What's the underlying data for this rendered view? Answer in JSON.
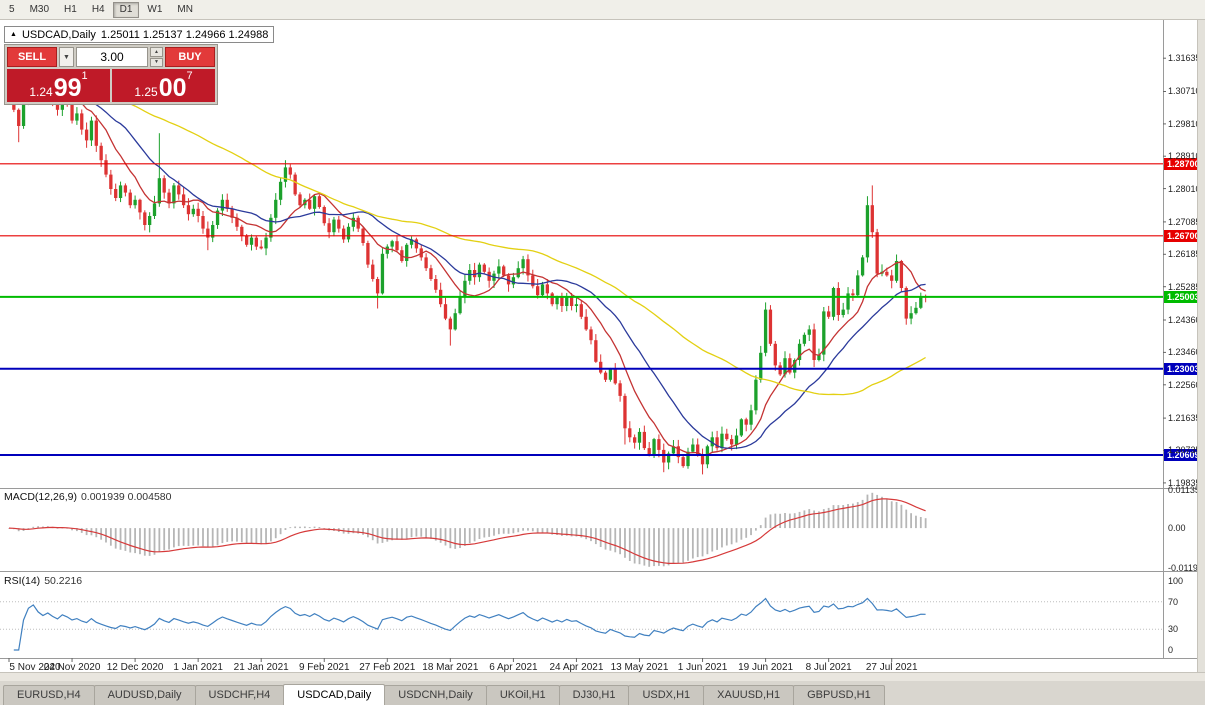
{
  "window": {
    "toolbar": {
      "buttons": [
        {
          "label": "5",
          "active": false
        },
        {
          "label": "M30",
          "active": false
        },
        {
          "label": "H1",
          "active": false
        },
        {
          "label": "H4",
          "active": false
        },
        {
          "label": "D1",
          "active": true
        },
        {
          "label": "W1",
          "active": false
        },
        {
          "label": "MN",
          "active": false
        }
      ]
    }
  },
  "chart": {
    "title": "USDCAD,Daily",
    "ohlc": "1.25011 1.25137 1.24966 1.24988",
    "collapse_icon": "▲"
  },
  "trade_panel": {
    "volume": "3.00",
    "icons": {
      "dropdown": "▼",
      "spin_up": "▲",
      "spin_down": "▼"
    },
    "sell": {
      "label": "SELL",
      "price_main": "1.24",
      "price_big": "99",
      "price_sup": "1"
    },
    "buy": {
      "label": "BUY",
      "price_main": "1.25",
      "price_big": "00",
      "price_sup": "7"
    }
  },
  "price_axis_ticks": [
    "1.31635",
    "1.30710",
    "1.29810",
    "1.28910",
    "1.28010",
    "1.27085",
    "1.26185",
    "1.25285",
    "1.24360",
    "1.23460",
    "1.22560",
    "1.21635",
    "1.20735",
    "1.19835"
  ],
  "hlines": [
    {
      "price": 1.287,
      "label": "1.28700",
      "color": "#e60000",
      "width": 1.2
    },
    {
      "price": 1.267,
      "label": "1.26700",
      "color": "#e60000",
      "width": 1.2
    },
    {
      "price": 1.25003,
      "label": "1.25003",
      "color": "#00bb00",
      "width": 2
    },
    {
      "price": 1.23003,
      "label": "1.23003",
      "color": "#0000bb",
      "width": 2
    },
    {
      "price": 1.20609,
      "label": "1.20609",
      "color": "#0000bb",
      "width": 2
    }
  ],
  "indicators": {
    "macd": {
      "name": "MACD(12,26,9)",
      "values_text": "0.001939 0.004580",
      "axis_labels": [
        "0.01135",
        "0.00",
        "-0.01190"
      ],
      "range": [
        -0.0119,
        0.01135
      ],
      "fast": 12,
      "slow": 26,
      "signal": 9,
      "hist_color": "#b6b6b6",
      "signal_color": "#d63a3a"
    },
    "rsi": {
      "name": "RSI(14)",
      "value_text": "50.2216",
      "axis_labels": [
        "100",
        "70",
        "30",
        "0"
      ],
      "levels": [
        70,
        30
      ],
      "period": 14,
      "color": "#4080c0"
    }
  },
  "tabs": [
    {
      "label": "EURUSD,H4",
      "active": false
    },
    {
      "label": "AUDUSD,Daily",
      "active": false
    },
    {
      "label": "USDCHF,H4",
      "active": false
    },
    {
      "label": "USDCAD,Daily",
      "active": true
    },
    {
      "label": "USDCNH,Daily",
      "active": false
    },
    {
      "label": "UKOil,H1",
      "active": false
    },
    {
      "label": "DJ30,H1",
      "active": false
    },
    {
      "label": "USDX,H1",
      "active": false
    },
    {
      "label": "XAUUSD,H1",
      "active": false
    },
    {
      "label": "GBPUSD,H1",
      "active": false
    }
  ],
  "chart_data": {
    "type": "candlestick",
    "symbol": "USDCAD",
    "timeframe": "Daily",
    "ylim": [
      1.1972,
      1.3214
    ],
    "open_first": 1.314,
    "up_color": "#1ca12c",
    "down_color": "#dd3333",
    "closes": [
      1.306,
      1.302,
      1.2975,
      1.304,
      1.3105,
      1.3135,
      1.309,
      1.306,
      1.3085,
      1.305,
      1.302,
      1.307,
      1.304,
      1.299,
      1.301,
      1.2965,
      1.2935,
      1.299,
      1.292,
      1.288,
      1.284,
      1.28,
      1.2775,
      1.281,
      1.279,
      1.2755,
      1.277,
      1.2735,
      1.27,
      1.2725,
      1.276,
      1.283,
      1.279,
      1.276,
      1.281,
      1.2785,
      1.2755,
      1.273,
      1.2745,
      1.2725,
      1.269,
      1.2665,
      1.27,
      1.274,
      1.277,
      1.2745,
      1.272,
      1.2695,
      1.267,
      1.2645,
      1.2665,
      1.264,
      1.2635,
      1.2665,
      1.272,
      1.277,
      1.282,
      1.286,
      1.284,
      1.2785,
      1.2755,
      1.277,
      1.2745,
      1.278,
      1.275,
      1.2705,
      1.268,
      1.2715,
      1.269,
      1.266,
      1.2695,
      1.272,
      1.269,
      1.265,
      1.259,
      1.255,
      1.251,
      1.262,
      1.264,
      1.2655,
      1.263,
      1.26,
      1.2645,
      1.266,
      1.2635,
      1.261,
      1.258,
      1.255,
      1.252,
      1.248,
      1.244,
      1.241,
      1.2455,
      1.25,
      1.2545,
      1.2575,
      1.2555,
      1.259,
      1.257,
      1.2545,
      1.2565,
      1.2585,
      1.256,
      1.2535,
      1.2555,
      1.258,
      1.2605,
      1.256,
      1.253,
      1.2505,
      1.2535,
      1.251,
      1.248,
      1.25,
      1.2475,
      1.25,
      1.2475,
      1.248,
      1.2445,
      1.241,
      1.238,
      1.232,
      1.229,
      1.227,
      1.23,
      1.226,
      1.2225,
      1.2135,
      1.211,
      1.2095,
      1.2125,
      1.208,
      1.206,
      1.2105,
      1.2075,
      1.204,
      1.2065,
      1.2085,
      1.2055,
      1.203,
      1.207,
      1.209,
      1.206,
      1.2035,
      1.2085,
      1.211,
      1.208,
      1.212,
      1.2105,
      1.209,
      1.2115,
      1.216,
      1.2145,
      1.2185,
      1.227,
      1.2345,
      1.2465,
      1.237,
      1.231,
      1.2285,
      1.233,
      1.229,
      1.2325,
      1.237,
      1.2395,
      1.241,
      1.2325,
      1.234,
      1.246,
      1.2445,
      1.2525,
      1.245,
      1.2465,
      1.251,
      1.2505,
      1.256,
      1.261,
      1.2755,
      1.268,
      1.2565,
      1.257,
      1.256,
      1.2545,
      1.26,
      1.2525,
      1.244,
      1.2455,
      1.247,
      1.2501,
      1.2499
    ],
    "wick_overrides": {
      "2": {
        "low": 1.293
      },
      "5": {
        "high": 1.3155
      },
      "31": {
        "high": 1.2955
      },
      "41": {
        "low": 1.263
      },
      "57": {
        "high": 1.288
      },
      "76": {
        "low": 1.2468
      },
      "91": {
        "low": 1.2365
      },
      "127": {
        "low": 1.209
      },
      "135": {
        "low": 1.2013
      },
      "143": {
        "low": 1.2007
      },
      "156": {
        "high": 1.2485
      },
      "177": {
        "high": 1.278
      },
      "178": {
        "high": 1.281
      },
      "185": {
        "low": 1.2423
      }
    },
    "moving_averages": [
      {
        "period": 10,
        "color": "#c43333"
      },
      {
        "period": 21,
        "color": "#2b3a9b"
      },
      {
        "period": 55,
        "color": "#e3d012"
      }
    ],
    "x_labels": [
      {
        "label": "5 Nov 2020",
        "i": 0
      },
      {
        "label": "24 Nov 2020",
        "i": 13
      },
      {
        "label": "12 Dec 2020",
        "i": 26
      },
      {
        "label": "1 Jan 2021",
        "i": 39
      },
      {
        "label": "21 Jan 2021",
        "i": 52
      },
      {
        "label": "9 Feb 2021",
        "i": 65
      },
      {
        "label": "27 Feb 2021",
        "i": 78
      },
      {
        "label": "18 Mar 2021",
        "i": 91
      },
      {
        "label": "6 Apr 2021",
        "i": 104
      },
      {
        "label": "24 Apr 2021",
        "i": 117
      },
      {
        "label": "13 May 2021",
        "i": 130
      },
      {
        "label": "1 Jun 2021",
        "i": 143
      },
      {
        "label": "19 Jun 2021",
        "i": 156
      },
      {
        "label": "8 Jul 2021",
        "i": 169
      },
      {
        "label": "27 Jul 2021",
        "i": 182
      }
    ]
  }
}
